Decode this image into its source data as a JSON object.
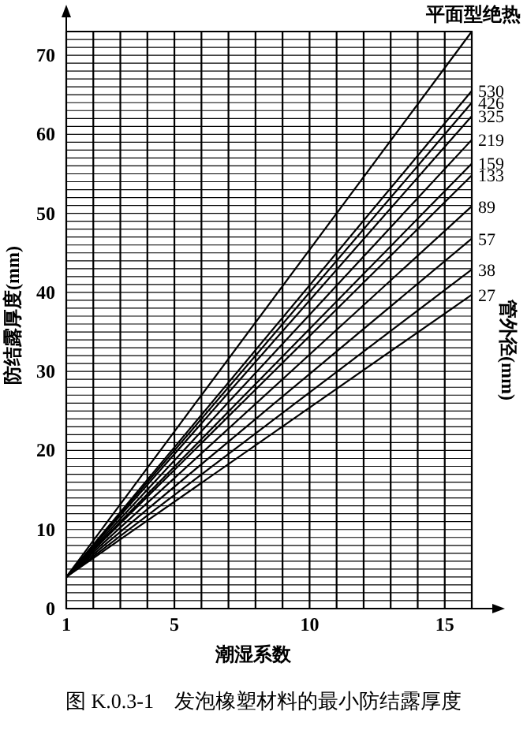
{
  "chart_data": {
    "type": "line",
    "xlabel": "潮湿系数",
    "ylabel": "防结露厚度(mm)",
    "legend_title": "管外径(mm)",
    "annotations": [
      "图 K.0.3-1　发泡橡塑材料的最小防结露厚度"
    ],
    "x": [
      1,
      16
    ],
    "xlim": [
      1,
      16
    ],
    "ylim": [
      0,
      73
    ],
    "xticks": [
      1,
      {
        "value": 2,
        "label": null
      },
      {
        "value": 3,
        "label": null
      },
      {
        "value": 4,
        "label": null
      },
      5,
      {
        "value": 6,
        "label": null
      },
      {
        "value": 7,
        "label": null
      },
      {
        "value": 8,
        "label": null
      },
      {
        "value": 9,
        "label": null
      },
      10,
      {
        "value": 11,
        "label": null
      },
      {
        "value": 12,
        "label": null
      },
      {
        "value": 13,
        "label": null
      },
      {
        "value": 14,
        "label": null
      },
      15,
      {
        "value": 16,
        "label": null
      }
    ],
    "yticks": [
      0,
      {
        "value": 1,
        "label": null
      },
      {
        "value": 2,
        "label": null
      },
      {
        "value": 3,
        "label": null
      },
      {
        "value": 4,
        "label": null
      },
      {
        "value": 5,
        "label": null
      },
      {
        "value": 6,
        "label": null
      },
      {
        "value": 7,
        "label": null
      },
      {
        "value": 8,
        "label": null
      },
      {
        "value": 9,
        "label": null
      },
      10,
      {
        "value": 11,
        "label": null
      },
      {
        "value": 12,
        "label": null
      },
      {
        "value": 13,
        "label": null
      },
      {
        "value": 14,
        "label": null
      },
      {
        "value": 15,
        "label": null
      },
      {
        "value": 16,
        "label": null
      },
      {
        "value": 17,
        "label": null
      },
      {
        "value": 18,
        "label": null
      },
      {
        "value": 19,
        "label": null
      },
      20,
      {
        "value": 21,
        "label": null
      },
      {
        "value": 22,
        "label": null
      },
      {
        "value": 23,
        "label": null
      },
      {
        "value": 24,
        "label": null
      },
      {
        "value": 25,
        "label": null
      },
      {
        "value": 26,
        "label": null
      },
      {
        "value": 27,
        "label": null
      },
      {
        "value": 28,
        "label": null
      },
      {
        "value": 29,
        "label": null
      },
      30,
      {
        "value": 31,
        "label": null
      },
      {
        "value": 32,
        "label": null
      },
      {
        "value": 33,
        "label": null
      },
      {
        "value": 34,
        "label": null
      },
      {
        "value": 35,
        "label": null
      },
      {
        "value": 36,
        "label": null
      },
      {
        "value": 37,
        "label": null
      },
      {
        "value": 38,
        "label": null
      },
      {
        "value": 39,
        "label": null
      },
      40,
      {
        "value": 41,
        "label": null
      },
      {
        "value": 42,
        "label": null
      },
      {
        "value": 43,
        "label": null
      },
      {
        "value": 44,
        "label": null
      },
      {
        "value": 45,
        "label": null
      },
      {
        "value": 46,
        "label": null
      },
      {
        "value": 47,
        "label": null
      },
      {
        "value": 48,
        "label": null
      },
      {
        "value": 49,
        "label": null
      },
      50,
      {
        "value": 51,
        "label": null
      },
      {
        "value": 52,
        "label": null
      },
      {
        "value": 53,
        "label": null
      },
      {
        "value": 54,
        "label": null
      },
      {
        "value": 55,
        "label": null
      },
      {
        "value": 56,
        "label": null
      },
      {
        "value": 57,
        "label": null
      },
      {
        "value": 58,
        "label": null
      },
      {
        "value": 59,
        "label": null
      },
      60,
      {
        "value": 61,
        "label": null
      },
      {
        "value": 62,
        "label": null
      },
      {
        "value": 63,
        "label": null
      },
      {
        "value": 64,
        "label": null
      },
      {
        "value": 65,
        "label": null
      },
      {
        "value": 66,
        "label": null
      },
      {
        "value": 67,
        "label": null
      },
      {
        "value": 68,
        "label": null
      },
      {
        "value": 69,
        "label": null
      },
      70,
      {
        "value": 71,
        "label": null
      },
      {
        "value": 72,
        "label": null
      },
      {
        "value": 73,
        "label": null
      }
    ],
    "grid": true,
    "marker": "none",
    "line_style": "solid",
    "series": [
      {
        "name": "平面型绝热",
        "color": "#000000",
        "values": [
          4,
          73
        ]
      },
      {
        "name": "530",
        "color": "#000000",
        "values": [
          4,
          65.5
        ]
      },
      {
        "name": "426",
        "color": "#000000",
        "values": [
          4,
          64
        ]
      },
      {
        "name": "325",
        "color": "#000000",
        "values": [
          4,
          62.3
        ]
      },
      {
        "name": "219",
        "color": "#000000",
        "values": [
          4,
          59.3
        ]
      },
      {
        "name": "159",
        "color": "#000000",
        "values": [
          4,
          56.3
        ]
      },
      {
        "name": "133",
        "color": "#000000",
        "values": [
          4,
          54.8
        ]
      },
      {
        "name": "89",
        "color": "#000000",
        "values": [
          4,
          50.9
        ]
      },
      {
        "name": "57",
        "color": "#000000",
        "values": [
          4,
          46.8
        ]
      },
      {
        "name": "38",
        "color": "#000000",
        "values": [
          4,
          42.9
        ]
      },
      {
        "name": "27",
        "color": "#000000",
        "values": [
          4,
          39.7
        ]
      }
    ]
  }
}
